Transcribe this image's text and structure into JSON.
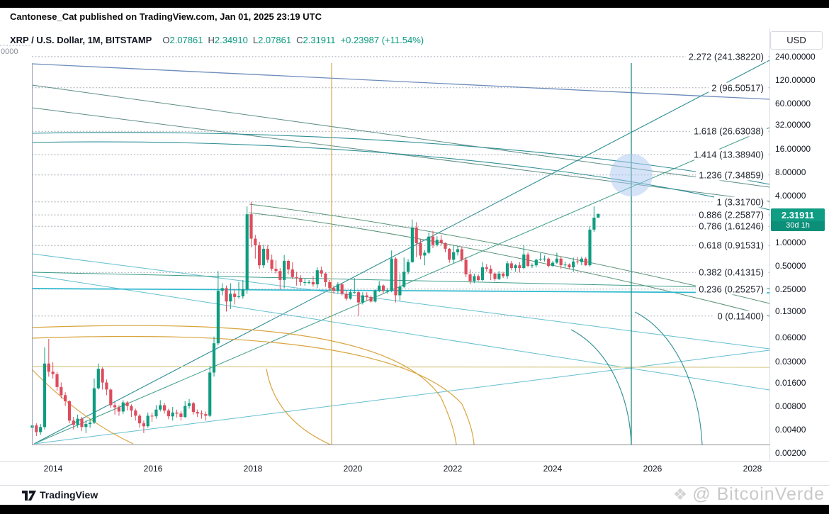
{
  "top_bar": {
    "attribution": "Cantonese_Cat published on TradingView.com, Jan 01, 2025 23:19 UTC"
  },
  "header": {
    "symbol": "XRP / U.S. Dollar, 1M, BITSTAMP",
    "ohlc": [
      {
        "k": "O",
        "v": "2.07861"
      },
      {
        "k": "H",
        "v": "2.34910"
      },
      {
        "k": "L",
        "v": "2.07861"
      },
      {
        "k": "C",
        "v": "2.31911"
      }
    ],
    "change": "+0.23987 (+11.54%)",
    "currency": "USD"
  },
  "chart": {
    "clipped_label": "0000"
  },
  "price_badge": {
    "price": "2.31911",
    "countdown": "30d 1h",
    "value": 2.31911
  },
  "fib_levels": [
    {
      "label": "2.272 (241.38220)",
      "ratio": 2.272,
      "price": 241.3822
    },
    {
      "label": "2 (96.50517)",
      "ratio": 2.0,
      "price": 96.50517
    },
    {
      "label": "1.618 (26.63038)",
      "ratio": 1.618,
      "price": 26.63038
    },
    {
      "label": "1.414 (13.38940)",
      "ratio": 1.414,
      "price": 13.3894
    },
    {
      "label": "1.236 (7.34859)",
      "ratio": 1.236,
      "price": 7.34859
    },
    {
      "label": "1 (3.31700)",
      "ratio": 1.0,
      "price": 3.317
    },
    {
      "label": "0.886 (2.25877)",
      "ratio": 0.886,
      "price": 2.25877
    },
    {
      "label": "0.786 (1.61246)",
      "ratio": 0.786,
      "price": 1.61246
    },
    {
      "label": "0.618 (0.91531)",
      "ratio": 0.618,
      "price": 0.91531
    },
    {
      "label": "0.382 (0.41315)",
      "ratio": 0.382,
      "price": 0.41315
    },
    {
      "label": "0.236 (0.25257)",
      "ratio": 0.236,
      "price": 0.25257
    },
    {
      "label": "0 (0.11400)",
      "ratio": 0.0,
      "price": 0.114
    }
  ],
  "price_scale": {
    "ticks": [
      {
        "label": "240.00000",
        "value": 240
      },
      {
        "label": "120.00000",
        "value": 120
      },
      {
        "label": "60.00000",
        "value": 60
      },
      {
        "label": "32.00000",
        "value": 32
      },
      {
        "label": "16.00000",
        "value": 16
      },
      {
        "label": "8.00000",
        "value": 8
      },
      {
        "label": "4.00000",
        "value": 4
      },
      {
        "label": "1.00000",
        "value": 1
      },
      {
        "label": "0.50000",
        "value": 0.5
      },
      {
        "label": "0.25000",
        "value": 0.25
      },
      {
        "label": "0.13000",
        "value": 0.13
      },
      {
        "label": "0.06000",
        "value": 0.06
      },
      {
        "label": "0.03000",
        "value": 0.03
      },
      {
        "label": "0.01600",
        "value": 0.016
      },
      {
        "label": "0.00800",
        "value": 0.008
      },
      {
        "label": "0.00400",
        "value": 0.004
      },
      {
        "label": "0.00200",
        "value": 0.002
      }
    ]
  },
  "time_scale": {
    "years": [
      2014,
      2016,
      2018,
      2020,
      2022,
      2024,
      2026,
      2028
    ]
  },
  "footer": {
    "brand": "TradingView",
    "watermark": "@ BitcoinVerde"
  },
  "colors": {
    "up": "#0f9c80",
    "down": "#dd4d5d",
    "accent": "#089981",
    "badge": "#0f9d84",
    "orange_line": "#d9a43e",
    "teal_line": "#1f8e80",
    "blue_line": "#6d8cbb",
    "cyan_line": "#2fb9cf",
    "khaki_line": "#e0d7a6",
    "highlight": "#aac8ef"
  },
  "chart_data": {
    "type": "candlestick",
    "title": "XRP / U.S. Dollar",
    "timeframe": "1M",
    "exchange": "BITSTAMP",
    "scale": "logarithmic",
    "ylim": [
      0.002,
      240
    ],
    "x_range_years": [
      2013.6,
      2028.6
    ],
    "open_policy": "open equals previous close; first_open is the first candle open",
    "first_open": 0.0042,
    "format": [
      "month",
      "close",
      "high",
      "low"
    ],
    "months": [
      [
        "2013-08",
        0.0045,
        0.006,
        0.0028
      ],
      [
        "2013-09",
        0.0037,
        0.0048,
        0.0033
      ],
      [
        "2013-10",
        0.0043,
        0.0047,
        0.0034
      ],
      [
        "2013-11",
        0.028,
        0.045,
        0.004
      ],
      [
        "2013-12",
        0.022,
        0.058,
        0.019
      ],
      [
        "2014-01",
        0.0205,
        0.029,
        0.018
      ],
      [
        "2014-02",
        0.014,
        0.022,
        0.0125
      ],
      [
        "2014-03",
        0.011,
        0.016,
        0.01
      ],
      [
        "2014-04",
        0.0092,
        0.012,
        0.008
      ],
      [
        "2014-05",
        0.0052,
        0.0095,
        0.0048
      ],
      [
        "2014-06",
        0.0046,
        0.0058,
        0.004
      ],
      [
        "2014-07",
        0.0055,
        0.0062,
        0.0042
      ],
      [
        "2014-08",
        0.0043,
        0.0058,
        0.0038
      ],
      [
        "2014-09",
        0.0047,
        0.0052,
        0.0036
      ],
      [
        "2014-10",
        0.0049,
        0.0055,
        0.0042
      ],
      [
        "2014-11",
        0.0135,
        0.018,
        0.0047
      ],
      [
        "2014-12",
        0.024,
        0.028,
        0.013
      ],
      [
        "2015-01",
        0.016,
        0.025,
        0.013
      ],
      [
        "2015-02",
        0.013,
        0.0175,
        0.011
      ],
      [
        "2015-03",
        0.0082,
        0.0135,
        0.0075
      ],
      [
        "2015-04",
        0.0077,
        0.009,
        0.0062
      ],
      [
        "2015-05",
        0.0068,
        0.0082,
        0.006
      ],
      [
        "2015-06",
        0.0089,
        0.0095,
        0.0063
      ],
      [
        "2015-07",
        0.008,
        0.0092,
        0.007
      ],
      [
        "2015-08",
        0.007,
        0.0084,
        0.0058
      ],
      [
        "2015-09",
        0.006,
        0.0074,
        0.0052
      ],
      [
        "2015-10",
        0.0048,
        0.0063,
        0.0042
      ],
      [
        "2015-11",
        0.0044,
        0.0052,
        0.0036
      ],
      [
        "2015-12",
        0.006,
        0.0066,
        0.0042
      ],
      [
        "2016-01",
        0.0059,
        0.0066,
        0.005
      ],
      [
        "2016-02",
        0.0072,
        0.0082,
        0.0055
      ],
      [
        "2016-03",
        0.0082,
        0.0095,
        0.0068
      ],
      [
        "2016-04",
        0.007,
        0.0088,
        0.0064
      ],
      [
        "2016-05",
        0.0059,
        0.0074,
        0.0054
      ],
      [
        "2016-06",
        0.0066,
        0.0078,
        0.0052
      ],
      [
        "2016-07",
        0.0064,
        0.0072,
        0.0057
      ],
      [
        "2016-08",
        0.0058,
        0.0069,
        0.0052
      ],
      [
        "2016-09",
        0.008,
        0.0092,
        0.0056
      ],
      [
        "2016-10",
        0.0087,
        0.0098,
        0.0074
      ],
      [
        "2016-11",
        0.0067,
        0.009,
        0.0062
      ],
      [
        "2016-12",
        0.0064,
        0.0072,
        0.0058
      ],
      [
        "2017-01",
        0.0063,
        0.007,
        0.0055
      ],
      [
        "2017-02",
        0.006,
        0.0068,
        0.0052
      ],
      [
        "2017-03",
        0.0215,
        0.026,
        0.0058
      ],
      [
        "2017-04",
        0.051,
        0.062,
        0.019
      ],
      [
        "2017-05",
        0.24,
        0.43,
        0.048
      ],
      [
        "2017-06",
        0.26,
        0.3,
        0.21
      ],
      [
        "2017-07",
        0.175,
        0.28,
        0.13
      ],
      [
        "2017-08",
        0.22,
        0.3,
        0.14
      ],
      [
        "2017-09",
        0.2,
        0.25,
        0.16
      ],
      [
        "2017-10",
        0.204,
        0.31,
        0.19
      ],
      [
        "2017-11",
        0.25,
        0.33,
        0.19
      ],
      [
        "2017-12",
        2.3,
        2.9,
        0.22
      ],
      [
        "2018-01",
        1.12,
        3.317,
        0.87
      ],
      [
        "2018-02",
        0.92,
        1.25,
        0.62
      ],
      [
        "2018-03",
        0.51,
        1.02,
        0.46
      ],
      [
        "2018-04",
        0.83,
        0.94,
        0.47
      ],
      [
        "2018-05",
        0.6,
        0.93,
        0.55
      ],
      [
        "2018-06",
        0.46,
        0.7,
        0.43
      ],
      [
        "2018-07",
        0.43,
        0.59,
        0.4
      ],
      [
        "2018-08",
        0.33,
        0.47,
        0.25
      ],
      [
        "2018-09",
        0.58,
        0.69,
        0.26
      ],
      [
        "2018-10",
        0.45,
        0.6,
        0.39
      ],
      [
        "2018-11",
        0.36,
        0.56,
        0.34
      ],
      [
        "2018-12",
        0.35,
        0.42,
        0.28
      ],
      [
        "2019-01",
        0.31,
        0.38,
        0.28
      ],
      [
        "2019-02",
        0.31,
        0.34,
        0.28
      ],
      [
        "2019-03",
        0.31,
        0.33,
        0.29
      ],
      [
        "2019-04",
        0.29,
        0.37,
        0.27
      ],
      [
        "2019-05",
        0.44,
        0.48,
        0.26
      ],
      [
        "2019-06",
        0.4,
        0.49,
        0.36
      ],
      [
        "2019-07",
        0.31,
        0.41,
        0.27
      ],
      [
        "2019-08",
        0.26,
        0.33,
        0.24
      ],
      [
        "2019-09",
        0.24,
        0.28,
        0.22
      ],
      [
        "2019-10",
        0.29,
        0.31,
        0.22
      ],
      [
        "2019-11",
        0.22,
        0.3,
        0.21
      ],
      [
        "2019-12",
        0.19,
        0.24,
        0.18
      ],
      [
        "2020-01",
        0.23,
        0.25,
        0.185
      ],
      [
        "2020-02",
        0.23,
        0.35,
        0.22
      ],
      [
        "2020-03",
        0.17,
        0.24,
        0.114
      ],
      [
        "2020-04",
        0.21,
        0.23,
        0.16
      ],
      [
        "2020-05",
        0.2,
        0.23,
        0.18
      ],
      [
        "2020-06",
        0.175,
        0.21,
        0.17
      ],
      [
        "2020-07",
        0.24,
        0.25,
        0.17
      ],
      [
        "2020-08",
        0.28,
        0.32,
        0.23
      ],
      [
        "2020-09",
        0.24,
        0.29,
        0.22
      ],
      [
        "2020-10",
        0.24,
        0.26,
        0.22
      ],
      [
        "2020-11",
        0.62,
        0.79,
        0.23
      ],
      [
        "2020-12",
        0.21,
        0.65,
        0.17
      ],
      [
        "2021-01",
        0.27,
        0.4,
        0.18
      ],
      [
        "2021-02",
        0.42,
        0.64,
        0.26
      ],
      [
        "2021-03",
        0.56,
        0.61,
        0.39
      ],
      [
        "2021-04",
        1.56,
        1.97,
        0.55
      ],
      [
        "2021-05",
        0.98,
        1.82,
        0.65
      ],
      [
        "2021-06",
        0.68,
        1.1,
        0.61
      ],
      [
        "2021-07",
        0.74,
        0.8,
        0.51
      ],
      [
        "2021-08",
        1.19,
        1.34,
        0.71
      ],
      [
        "2021-09",
        0.93,
        1.41,
        0.85
      ],
      [
        "2021-10",
        1.08,
        1.2,
        0.89
      ],
      [
        "2021-11",
        0.98,
        1.25,
        0.92
      ],
      [
        "2021-12",
        0.83,
        1.0,
        0.75
      ],
      [
        "2022-01",
        0.6,
        0.85,
        0.55
      ],
      [
        "2022-02",
        0.75,
        0.91,
        0.54
      ],
      [
        "2022-03",
        0.82,
        0.91,
        0.68
      ],
      [
        "2022-04",
        0.6,
        0.89,
        0.57
      ],
      [
        "2022-05",
        0.39,
        0.65,
        0.36
      ],
      [
        "2022-06",
        0.32,
        0.45,
        0.29
      ],
      [
        "2022-07",
        0.37,
        0.4,
        0.3
      ],
      [
        "2022-08",
        0.33,
        0.39,
        0.32
      ],
      [
        "2022-09",
        0.48,
        0.56,
        0.32
      ],
      [
        "2022-10",
        0.46,
        0.53,
        0.42
      ],
      [
        "2022-11",
        0.4,
        0.51,
        0.33
      ],
      [
        "2022-12",
        0.34,
        0.41,
        0.32
      ],
      [
        "2023-01",
        0.4,
        0.43,
        0.33
      ],
      [
        "2023-02",
        0.37,
        0.42,
        0.35
      ],
      [
        "2023-03",
        0.54,
        0.58,
        0.34
      ],
      [
        "2023-04",
        0.47,
        0.58,
        0.44
      ],
      [
        "2023-05",
        0.51,
        0.53,
        0.42
      ],
      [
        "2023-06",
        0.47,
        0.56,
        0.41
      ],
      [
        "2023-07",
        0.7,
        0.93,
        0.45
      ],
      [
        "2023-08",
        0.5,
        0.75,
        0.48
      ],
      [
        "2023-09",
        0.51,
        0.54,
        0.47
      ],
      [
        "2023-10",
        0.6,
        0.62,
        0.48
      ],
      [
        "2023-11",
        0.61,
        0.73,
        0.58
      ],
      [
        "2023-12",
        0.62,
        0.68,
        0.57
      ],
      [
        "2024-01",
        0.5,
        0.64,
        0.48
      ],
      [
        "2024-02",
        0.55,
        0.58,
        0.49
      ],
      [
        "2024-03",
        0.62,
        0.74,
        0.53
      ],
      [
        "2024-04",
        0.51,
        0.66,
        0.46
      ],
      [
        "2024-05",
        0.52,
        0.57,
        0.48
      ],
      [
        "2024-06",
        0.48,
        0.54,
        0.45
      ],
      [
        "2024-07",
        0.57,
        0.64,
        0.42
      ],
      [
        "2024-08",
        0.56,
        0.65,
        0.52
      ],
      [
        "2024-09",
        0.62,
        0.66,
        0.51
      ],
      [
        "2024-10",
        0.51,
        0.65,
        0.5
      ],
      [
        "2024-11",
        1.46,
        1.63,
        0.49
      ],
      [
        "2024-12",
        2.08,
        2.9,
        1.37
      ],
      [
        "2025-01",
        2.319,
        2.349,
        2.078
      ]
    ],
    "annotations": {
      "vertical_lines": [
        {
          "color": "orange",
          "position_year": 2019.6
        },
        {
          "color": "teal",
          "position_year": 2025.6
        }
      ],
      "highlight_circle": {
        "position_year": 2025.6,
        "price_approx": 7.5
      },
      "fib_anchors": {
        "low": 0.114,
        "high": 3.317
      }
    }
  }
}
